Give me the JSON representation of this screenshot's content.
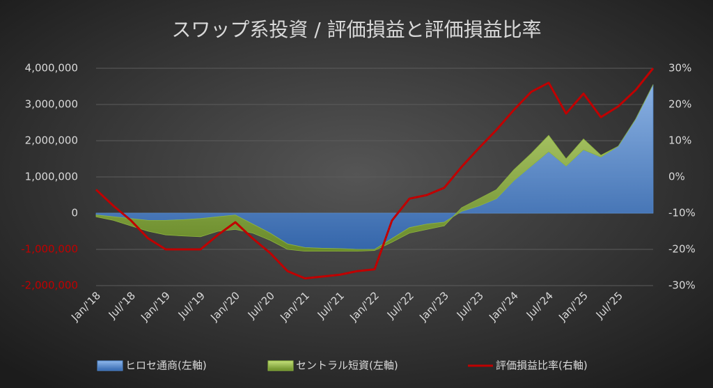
{
  "chart_data": {
    "type": "stacked-area-line",
    "title": "スワップ系投資 / 評価損益と評価損益比率",
    "categories": [
      "Jan/'18",
      null,
      "Jul/'18",
      null,
      "Jan/'19",
      null,
      "Jul/'19",
      null,
      "Jan/'20",
      null,
      "Jul/'20",
      null,
      "Jan/'21",
      null,
      "Jul/'21",
      null,
      "Jan/'22",
      null,
      "Jul/'22",
      null,
      "Jan/'23",
      null,
      "Jul/'23",
      null,
      "Jan/'24",
      null,
      "Jul/'24",
      null,
      "Jan/'25",
      null,
      "Jul/'25",
      null,
      null
    ],
    "series": [
      {
        "name": "ヒロセ通商(左軸)",
        "kind": "area",
        "color": "#4f86cc",
        "values": [
          -50000,
          -100000,
          -150000,
          -200000,
          -200000,
          -180000,
          -150000,
          -100000,
          -50000,
          -300000,
          -550000,
          -850000,
          -950000,
          -970000,
          -980000,
          -1000000,
          -1000000,
          -700000,
          -400000,
          -300000,
          -250000,
          50000,
          200000,
          400000,
          900000,
          1300000,
          1700000,
          1300000,
          1750000,
          1550000,
          1850000,
          2600000,
          3550000
        ]
      },
      {
        "name": "セントラル短資(左軸)",
        "kind": "area",
        "color": "#8db43e",
        "values": [
          -50000,
          -100000,
          -200000,
          -300000,
          -400000,
          -450000,
          -500000,
          -400000,
          -400000,
          -250000,
          -200000,
          -150000,
          -100000,
          -80000,
          -70000,
          -50000,
          -30000,
          -100000,
          -150000,
          -150000,
          -100000,
          100000,
          200000,
          250000,
          300000,
          350000,
          450000,
          200000,
          300000,
          50000,
          0,
          0,
          0
        ]
      },
      {
        "name": "評価損益比率(右軸)",
        "kind": "line",
        "axis": "y2",
        "color": "#c00000",
        "values": [
          -3.5,
          -8,
          -12,
          -17,
          -20,
          -20,
          -20,
          -16,
          -12.5,
          -17,
          -21,
          -26,
          -28,
          -27.5,
          -27,
          -26,
          -25.5,
          -12,
          -6,
          -5,
          -3,
          2.8,
          8,
          13,
          18.5,
          23.5,
          26,
          17.5,
          23,
          16.5,
          19.5,
          24,
          30
        ]
      }
    ],
    "ylim": [
      -2000000,
      4000000
    ],
    "yticks": [
      {
        "value": -2000000,
        "label": "-2,000,000"
      },
      {
        "value": -1000000,
        "label": "-1,000,000"
      },
      0,
      {
        "value": 1000000,
        "label": "1,000,000"
      },
      {
        "value": 2000000,
        "label": "2,000,000"
      },
      {
        "value": 3000000,
        "label": "3,000,000"
      },
      {
        "value": 4000000,
        "label": "4,000,000"
      }
    ],
    "y2lim": [
      -30,
      30
    ],
    "y2ticks": [
      {
        "value": -30,
        "label": "-30%"
      },
      {
        "value": -20,
        "label": "-20%"
      },
      {
        "value": -10,
        "label": "-10%"
      },
      {
        "value": 0,
        "label": "0%"
      },
      {
        "value": 10,
        "label": "10%"
      },
      {
        "value": 20,
        "label": "20%"
      },
      {
        "value": 30,
        "label": "30%"
      }
    ],
    "grid": true,
    "legend": "bottom"
  }
}
